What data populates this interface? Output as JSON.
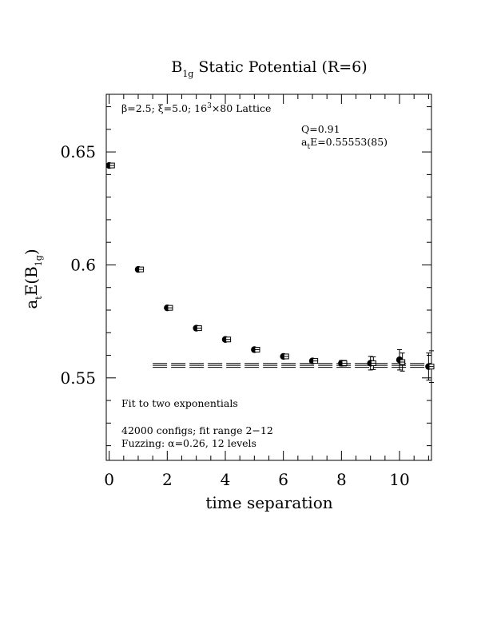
{
  "chart_data": {
    "type": "scatter",
    "title": {
      "main": "B",
      "sub": "1g",
      "rest": " Static Potential (R=6)"
    },
    "xlabel": "time separation",
    "ylabel": {
      "pre": "a",
      "sub1": "t",
      "mid": "E(B",
      "sub2": "1g",
      "post": ")"
    },
    "xlim": [
      -0.1,
      11.1
    ],
    "ylim": [
      0.5135,
      0.6755
    ],
    "x_ticks": [
      0,
      2,
      4,
      6,
      8,
      10
    ],
    "x_tick_labels": [
      "0",
      "2",
      "4",
      "6",
      "8",
      "10"
    ],
    "y_ticks": [
      0.55,
      0.6,
      0.65
    ],
    "y_tick_labels": [
      "0.55",
      "0.6",
      "0.65"
    ],
    "grid": false,
    "series": [
      {
        "marker": "filled-circle",
        "points": [
          {
            "x": 0,
            "y": 0.644,
            "err": 0.0004
          },
          {
            "x": 1,
            "y": 0.598,
            "err": 0.0004
          },
          {
            "x": 2,
            "y": 0.581,
            "err": 0.0004
          },
          {
            "x": 3,
            "y": 0.572,
            "err": 0.0005
          },
          {
            "x": 4,
            "y": 0.567,
            "err": 0.0005
          },
          {
            "x": 5,
            "y": 0.5625,
            "err": 0.0005
          },
          {
            "x": 6,
            "y": 0.5595,
            "err": 0.0006
          },
          {
            "x": 7,
            "y": 0.5575,
            "err": 0.0008
          },
          {
            "x": 8,
            "y": 0.5565,
            "err": 0.0012
          },
          {
            "x": 9,
            "y": 0.5565,
            "err": 0.003
          },
          {
            "x": 10,
            "y": 0.558,
            "err": 0.0045
          },
          {
            "x": 11,
            "y": 0.555,
            "err": 0.006
          }
        ]
      },
      {
        "marker": "open-square",
        "points": [
          {
            "x": 0.1,
            "y": 0.644,
            "err": 0.0004
          },
          {
            "x": 1.1,
            "y": 0.598,
            "err": 0.0004
          },
          {
            "x": 2.1,
            "y": 0.581,
            "err": 0.0004
          },
          {
            "x": 3.1,
            "y": 0.572,
            "err": 0.0005
          },
          {
            "x": 4.1,
            "y": 0.567,
            "err": 0.0005
          },
          {
            "x": 5.1,
            "y": 0.5625,
            "err": 0.0005
          },
          {
            "x": 6.1,
            "y": 0.5595,
            "err": 0.0006
          },
          {
            "x": 7.1,
            "y": 0.5575,
            "err": 0.0008
          },
          {
            "x": 8.1,
            "y": 0.5565,
            "err": 0.0012
          },
          {
            "x": 9.1,
            "y": 0.5565,
            "err": 0.0028
          },
          {
            "x": 10.1,
            "y": 0.557,
            "err": 0.004
          },
          {
            "x": 11.1,
            "y": 0.555,
            "err": 0.007
          }
        ]
      }
    ],
    "fit": {
      "x_range": [
        1.5,
        11.1
      ],
      "central": 0.55553,
      "error": 0.00085
    },
    "annotations": {
      "lattice": {
        "pre": "β=2.5; ξ=5.0; 16",
        "sup": "3",
        "post": "×80 Lattice"
      },
      "q": "Q=0.91",
      "energy": {
        "pre": "a",
        "sub": "t",
        "post": "E=0.55553(85)"
      },
      "fit_desc": "Fit to two exponentials",
      "configs": "42000 configs; fit range 2−12",
      "fuzzing": "Fuzzing: α=0.26, 12 levels"
    }
  }
}
